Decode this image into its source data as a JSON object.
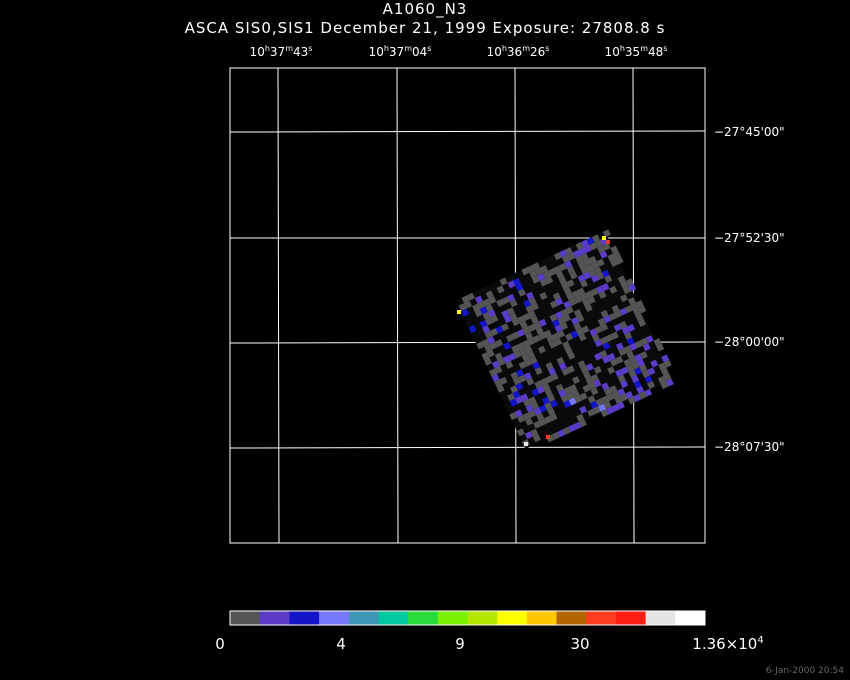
{
  "header": {
    "title": "A1060_N3",
    "subtitle": "ASCA SIS0,SIS1 December 21, 1999 Exposure: 27808.8 s"
  },
  "ra_axis": [
    {
      "h": "10",
      "m": "37",
      "s": "43"
    },
    {
      "h": "10",
      "m": "37",
      "s": "04"
    },
    {
      "h": "10",
      "m": "36",
      "s": "26"
    },
    {
      "h": "10",
      "m": "35",
      "s": "48"
    }
  ],
  "dec_axis": [
    "−27°45'00\"",
    "−27°52'30\"",
    "−28°00'00\"",
    "−28°07'30\""
  ],
  "colorbar": {
    "colors": [
      "#555555",
      "#5a3cc8",
      "#1414c8",
      "#7878ff",
      "#3c96b4",
      "#00c8a0",
      "#28dc3c",
      "#78f000",
      "#b4e600",
      "#ffff00",
      "#ffc800",
      "#b46400",
      "#ff3c1e",
      "#ff1e14",
      "#e6e6e6",
      "#ffffff"
    ],
    "labels": {
      "l0": "0",
      "l1": "4",
      "l2": "9",
      "l3": "30",
      "l4": "1.36×10",
      "l4exp": "4"
    }
  },
  "timestamp": "6-Jan-2000 20:54"
}
